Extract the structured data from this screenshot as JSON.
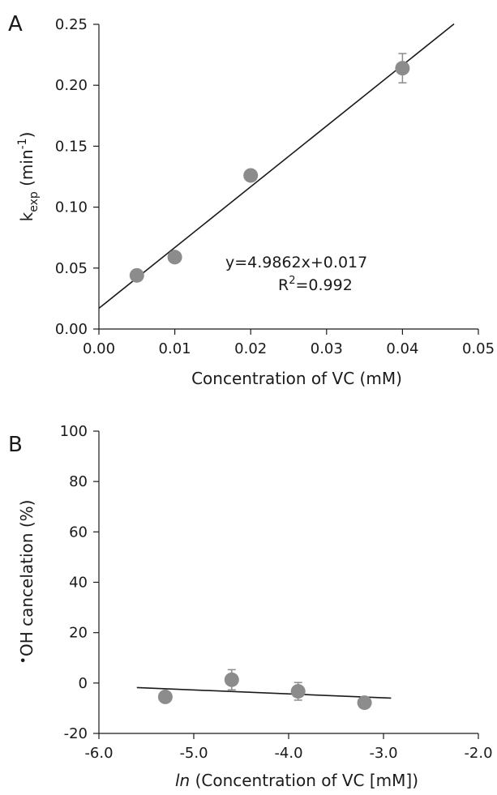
{
  "chart_data": [
    {
      "type": "scatter",
      "panel_label": "A",
      "xlabel": "Concentration of VC (mM)",
      "ylabel_main": "k",
      "ylabel_sub": "exp",
      "ylabel_unit_pre": " (min",
      "ylabel_unit_sup": "-1",
      "ylabel_unit_post": ")",
      "xlim": [
        0,
        0.05
      ],
      "ylim": [
        0,
        0.25
      ],
      "x_ticks": [
        0,
        0.01,
        0.02,
        0.03,
        0.04,
        0.05
      ],
      "x_tick_labels": [
        "0.00",
        "0.01",
        "0.02",
        "0.03",
        "0.04",
        "0.05"
      ],
      "y_ticks": [
        0,
        0.05,
        0.1,
        0.15,
        0.2,
        0.25
      ],
      "y_tick_labels": [
        "0.00",
        "0.05",
        "0.10",
        "0.15",
        "0.20",
        "0.25"
      ],
      "points": [
        {
          "x": 0.005,
          "y": 0.044,
          "err": 0
        },
        {
          "x": 0.01,
          "y": 0.059,
          "err": 0
        },
        {
          "x": 0.02,
          "y": 0.126,
          "err": 0
        },
        {
          "x": 0.04,
          "y": 0.214,
          "err": 0.012
        }
      ],
      "fit": {
        "slope": 4.9862,
        "intercept": 0.017,
        "x_range": [
          0,
          0.0468
        ]
      },
      "annotation_line1": "y=4.9862x+0.017",
      "annotation_r_pre": "R",
      "annotation_r_sup": "2",
      "annotation_r_post": "=0.992",
      "marker_color": "#8c8c8c",
      "line_color": "#1a1a1a",
      "grid": false
    },
    {
      "type": "scatter",
      "panel_label": "B",
      "xlabel_italic": "ln",
      "xlabel_rest": " (Concentration of VC [mM])",
      "ylabel_dot": "•",
      "ylabel_rest": "OH cancelation (%)",
      "xlim": [
        -6,
        -2
      ],
      "ylim": [
        -20,
        100
      ],
      "x_ticks": [
        -6,
        -5,
        -4,
        -3,
        -2
      ],
      "x_tick_labels": [
        "-6.0",
        "-5.0",
        "-4.0",
        "-3.0",
        "-2.0"
      ],
      "y_ticks": [
        -20,
        0,
        20,
        40,
        60,
        80,
        100
      ],
      "y_tick_labels": [
        "-20",
        "0",
        "20",
        "40",
        "60",
        "80",
        "100"
      ],
      "points": [
        {
          "x": -5.3,
          "y": -5.5,
          "err": 0
        },
        {
          "x": -4.6,
          "y": 1.3,
          "err": 4.0
        },
        {
          "x": -3.9,
          "y": -3.3,
          "err": 3.5
        },
        {
          "x": -3.2,
          "y": -7.8,
          "err": 2.0
        }
      ],
      "fit_line": {
        "x": [
          -5.6,
          -2.92
        ],
        "y": [
          -1.8,
          -6.0
        ]
      },
      "marker_color": "#8c8c8c",
      "line_color": "#1a1a1a",
      "grid": false
    }
  ]
}
